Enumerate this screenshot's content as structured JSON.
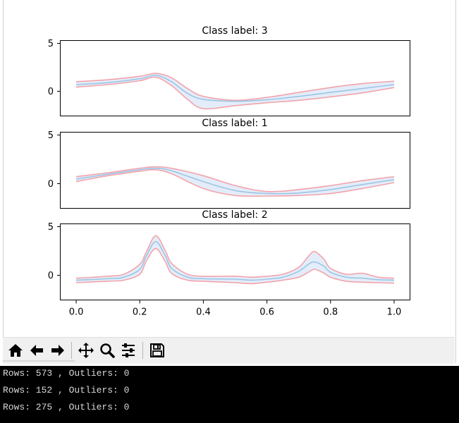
{
  "figure": {
    "panels": [
      {
        "title": "Class label: 3"
      },
      {
        "title": "Class label: 1"
      },
      {
        "title": "Class label: 2"
      }
    ],
    "y_ticks": [
      "5",
      "0"
    ],
    "x_ticks": [
      "0.0",
      "0.2",
      "0.4",
      "0.6",
      "0.8",
      "1.0"
    ]
  },
  "chart_data": [
    {
      "type": "line",
      "title": "Class label: 3",
      "xlim": [
        -0.05,
        1.05
      ],
      "ylim": [
        -2.6,
        5.1
      ],
      "y_ticks": [
        5,
        0
      ],
      "series": [
        {
          "role": "upper",
          "color": "#f4a3ab",
          "x": [
            0,
            0.1,
            0.2,
            0.25,
            0.3,
            0.35,
            0.4,
            0.5,
            0.6,
            0.7,
            0.8,
            0.9,
            1.0
          ],
          "y": [
            0.9,
            1.1,
            1.45,
            1.75,
            1.3,
            0.2,
            -0.6,
            -1.0,
            -0.7,
            -0.2,
            0.3,
            0.7,
            0.95
          ]
        },
        {
          "role": "mean",
          "color": "#9ec5e4",
          "x": [
            0,
            0.1,
            0.2,
            0.25,
            0.3,
            0.35,
            0.4,
            0.5,
            0.6,
            0.7,
            0.8,
            0.9,
            1.0
          ],
          "y": [
            0.6,
            0.8,
            1.2,
            1.55,
            0.9,
            -0.3,
            -0.9,
            -1.1,
            -0.95,
            -0.6,
            -0.2,
            0.2,
            0.6
          ]
        },
        {
          "role": "lower",
          "color": "#f4a3ab",
          "x": [
            0,
            0.1,
            0.2,
            0.25,
            0.3,
            0.35,
            0.4,
            0.5,
            0.6,
            0.7,
            0.8,
            0.9,
            1.0
          ],
          "y": [
            0.35,
            0.6,
            1.0,
            1.35,
            0.5,
            -0.9,
            -1.85,
            -1.55,
            -1.25,
            -1.0,
            -0.65,
            -0.25,
            0.3
          ]
        }
      ]
    },
    {
      "type": "line",
      "title": "Class label: 1",
      "xlim": [
        -0.05,
        1.05
      ],
      "ylim": [
        -2.6,
        5.1
      ],
      "y_ticks": [
        5,
        0
      ],
      "series": [
        {
          "role": "upper",
          "color": "#f4a3ab",
          "x": [
            0,
            0.1,
            0.2,
            0.25,
            0.3,
            0.4,
            0.5,
            0.6,
            0.7,
            0.8,
            0.9,
            1.0
          ],
          "y": [
            0.6,
            1.0,
            1.45,
            1.6,
            1.45,
            0.7,
            -0.3,
            -0.9,
            -0.7,
            -0.3,
            0.2,
            0.6
          ]
        },
        {
          "role": "mean",
          "color": "#9ec5e4",
          "x": [
            0,
            0.1,
            0.2,
            0.25,
            0.3,
            0.4,
            0.5,
            0.6,
            0.7,
            0.8,
            0.9,
            1.0
          ],
          "y": [
            0.35,
            0.85,
            1.3,
            1.45,
            1.2,
            0.1,
            -0.8,
            -1.1,
            -1.05,
            -0.7,
            -0.2,
            0.3
          ]
        },
        {
          "role": "lower",
          "color": "#f4a3ab",
          "x": [
            0,
            0.1,
            0.2,
            0.25,
            0.3,
            0.4,
            0.5,
            0.6,
            0.7,
            0.8,
            0.9,
            1.0
          ],
          "y": [
            0.1,
            0.7,
            1.15,
            1.3,
            0.9,
            -0.6,
            -1.3,
            -1.35,
            -1.3,
            -1.1,
            -0.6,
            0.0
          ]
        }
      ]
    },
    {
      "type": "line",
      "title": "Class label: 2",
      "xlim": [
        -0.05,
        1.05
      ],
      "ylim": [
        -2.6,
        5.1
      ],
      "y_ticks": [
        5,
        0
      ],
      "x_ticks": [
        0.0,
        0.2,
        0.4,
        0.6,
        0.8,
        1.0
      ],
      "series": [
        {
          "role": "upper",
          "color": "#f4a3ab",
          "x": [
            0,
            0.1,
            0.15,
            0.2,
            0.22,
            0.25,
            0.28,
            0.3,
            0.35,
            0.4,
            0.5,
            0.55,
            0.6,
            0.65,
            0.7,
            0.73,
            0.75,
            0.78,
            0.8,
            0.85,
            0.9,
            0.95,
            1.0
          ],
          "y": [
            -0.4,
            -0.2,
            0.0,
            1.0,
            2.2,
            3.9,
            2.4,
            1.1,
            0.0,
            -0.2,
            -0.2,
            -0.3,
            -0.2,
            0.0,
            0.7,
            1.8,
            2.3,
            1.5,
            0.6,
            0.0,
            0.1,
            -0.3,
            -0.4
          ]
        },
        {
          "role": "mean",
          "color": "#9ec5e4",
          "x": [
            0,
            0.1,
            0.15,
            0.2,
            0.22,
            0.25,
            0.28,
            0.3,
            0.35,
            0.4,
            0.5,
            0.55,
            0.6,
            0.65,
            0.7,
            0.73,
            0.75,
            0.78,
            0.8,
            0.85,
            0.9,
            0.95,
            1.0
          ],
          "y": [
            -0.6,
            -0.45,
            -0.3,
            0.5,
            1.8,
            3.3,
            1.9,
            0.6,
            -0.3,
            -0.45,
            -0.5,
            -0.6,
            -0.5,
            -0.3,
            0.3,
            1.0,
            1.25,
            0.8,
            0.2,
            -0.3,
            -0.4,
            -0.55,
            -0.6
          ]
        },
        {
          "role": "lower",
          "color": "#f4a3ab",
          "x": [
            0,
            0.1,
            0.15,
            0.2,
            0.22,
            0.25,
            0.28,
            0.3,
            0.35,
            0.4,
            0.5,
            0.55,
            0.6,
            0.65,
            0.7,
            0.73,
            0.75,
            0.78,
            0.8,
            0.85,
            0.9,
            0.95,
            1.0
          ],
          "y": [
            -0.85,
            -0.7,
            -0.6,
            0.0,
            1.3,
            2.6,
            1.3,
            0.1,
            -0.6,
            -0.7,
            -0.85,
            -0.95,
            -0.8,
            -0.6,
            -0.3,
            0.2,
            0.5,
            0.1,
            -0.3,
            -0.7,
            -0.8,
            -0.85,
            -0.9
          ]
        }
      ]
    }
  ],
  "toolbar": {
    "buttons": [
      {
        "name": "home",
        "icon": "home-icon"
      },
      {
        "name": "back",
        "icon": "arrow-left-icon"
      },
      {
        "name": "forward",
        "icon": "arrow-right-icon"
      },
      {
        "name": "pan",
        "icon": "move-icon"
      },
      {
        "name": "zoom",
        "icon": "magnifier-icon"
      },
      {
        "name": "configure",
        "icon": "sliders-icon"
      },
      {
        "name": "save",
        "icon": "floppy-icon"
      }
    ]
  },
  "console": {
    "lines": [
      "Rows: 573 , Outliers: 0",
      "Rows: 152 , Outliers: 0",
      "Rows: 275 , Outliers: 0"
    ]
  },
  "colors": {
    "mean_line": "#9ec5e4",
    "band_line": "#f4a3ab",
    "band_fill": "#dce9f7",
    "console_bg": "#000000"
  }
}
